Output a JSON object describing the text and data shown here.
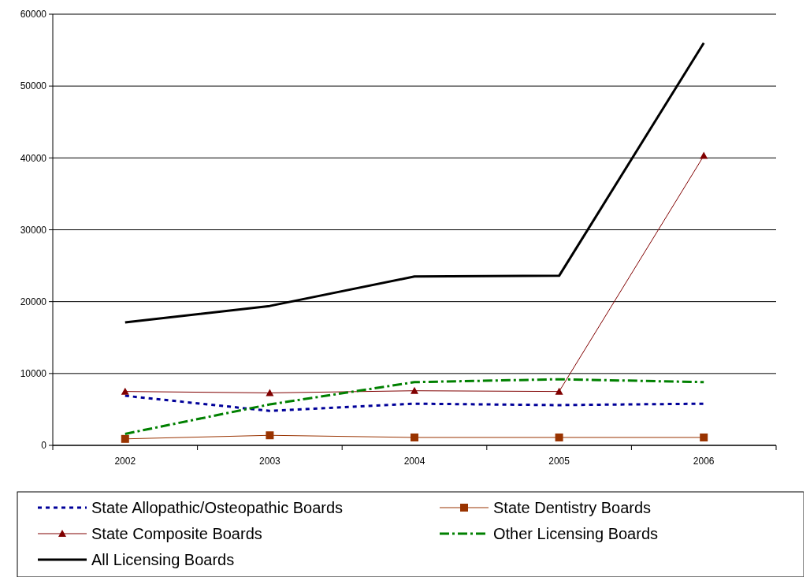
{
  "chart_data": {
    "type": "line",
    "categories": [
      "2002",
      "2003",
      "2004",
      "2005",
      "2006"
    ],
    "ylim": [
      0,
      60000
    ],
    "yticks": [
      0,
      10000,
      20000,
      30000,
      40000,
      50000,
      60000
    ],
    "grid": "y",
    "legend": "bottom",
    "series": [
      {
        "name": "State Allopathic/Osteopathic Boards",
        "color": "#000099",
        "marker": "none",
        "line_style": "dotted",
        "values": [
          6900,
          4800,
          5800,
          5600,
          5800
        ]
      },
      {
        "name": "State Dentistry Boards",
        "color": "#993300",
        "marker": "square",
        "line_style": "solid",
        "values": [
          900,
          1400,
          1100,
          1100,
          1100
        ]
      },
      {
        "name": "State Composite Boards",
        "color": "#800000",
        "marker": "triangle",
        "line_style": "solid",
        "values": [
          7500,
          7300,
          7600,
          7500,
          40300
        ]
      },
      {
        "name": "Other Licensing Boards",
        "color": "#008000",
        "marker": "none",
        "line_style": "dashed",
        "values": [
          1600,
          5700,
          8800,
          9200,
          8800
        ]
      },
      {
        "name": "All Licensing Boards",
        "color": "#000000",
        "marker": "none",
        "line_style": "solid",
        "values": [
          17100,
          19400,
          23500,
          23600,
          56000
        ]
      }
    ]
  }
}
